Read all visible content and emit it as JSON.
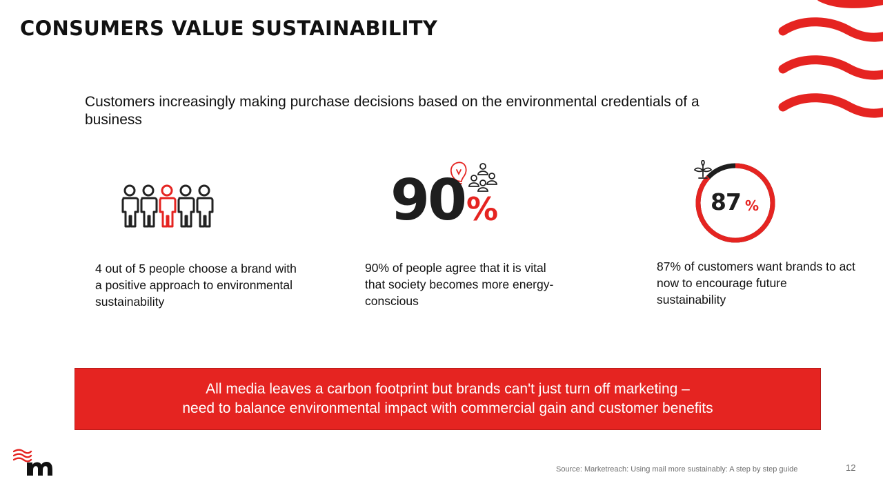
{
  "slide": {
    "title": "CONSUMERS VALUE SUSTAINABILITY",
    "subtitle": "Customers increasingly making purchase decisions based on the environmental credentials of a business"
  },
  "stats": [
    {
      "icon": "people-group-icon",
      "caption": "4 out of 5 people choose a brand with a positive approach to environmental sustainability",
      "highlighted_of": [
        1,
        5
      ]
    },
    {
      "number": "90",
      "unit": "%",
      "icon": "lightbulb-people-icon",
      "caption": "90% of people agree that it is vital that society becomes more energy-conscious"
    },
    {
      "number": "87",
      "unit": "%",
      "icon": "plant-sprout-icon",
      "ring_fraction": 0.87,
      "caption": "87% of customers want brands to act now to encourage future sustainability"
    }
  ],
  "banner": {
    "line1": "All media leaves a carbon footprint but brands can't just turn off marketing –",
    "line2": "need to balance environmental impact with commercial gain and customer benefits"
  },
  "footer": {
    "source": "Source: Marketreach: Using mail more sustainably: A step by step guide",
    "page_number": "12"
  },
  "colors": {
    "accent": "#e52421",
    "text": "#111111",
    "dark_figure": "#1e1e1e",
    "muted": "#6d6d6d"
  }
}
